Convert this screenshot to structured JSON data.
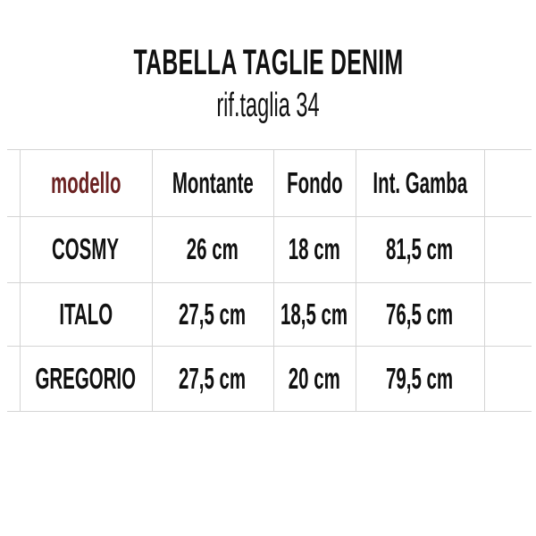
{
  "title": "TABELLA TAGLIE DENIM",
  "subtitle": "rif.taglia 34",
  "table": {
    "headers": [
      "modello",
      "Montante",
      "Fondo",
      "Int. Gamba"
    ],
    "rows": [
      [
        "COSMY",
        "26 cm",
        "18 cm",
        "81,5 cm"
      ],
      [
        "ITALO",
        "27,5 cm",
        "18,5 cm",
        "76,5 cm"
      ],
      [
        "GREGORIO",
        "27,5 cm",
        "20 cm",
        "79,5 cm"
      ]
    ]
  },
  "colors": {
    "modello_header": "#6b2222",
    "grid": "#d4d4d4",
    "text": "#111111"
  }
}
